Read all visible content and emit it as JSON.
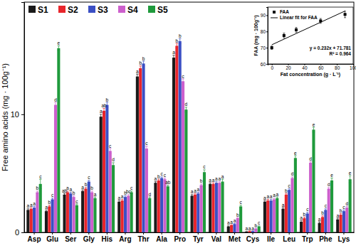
{
  "chart_data": [
    {
      "type": "bar",
      "y_label": "Free amino acids (mg · 100g⁻¹)",
      "categories": [
        "Asp",
        "Glu",
        "Ser",
        "Gly",
        "His",
        "Arg",
        "Thr",
        "Ala",
        "Pro",
        "Tyr",
        "Val",
        "Met",
        "Cys",
        "Ile",
        "Leu",
        "Trp",
        "Phe",
        "Lys"
      ],
      "ylim": [
        0,
        19.5
      ],
      "yticks": [
        0,
        10
      ],
      "legend": "top-left",
      "series": [
        {
          "name": "S1",
          "color": "#1a1a1a",
          "values": [
            1.9,
            1.8,
            3.2,
            3.5,
            9.8,
            2.6,
            13.2,
            4.2,
            14.8,
            3.1,
            4.1,
            0.5,
            0.05,
            2.6,
            2.0,
            0.9,
            0.8,
            1.1
          ],
          "errors": [
            0.1,
            0.1,
            0.1,
            0.1,
            0.2,
            0.1,
            0.2,
            0.1,
            0.2,
            0.1,
            0.1,
            0.05,
            0.02,
            0.1,
            0.1,
            0.1,
            0.1,
            0.1
          ],
          "letters": [
            "a",
            "a",
            "ab",
            "a",
            "a",
            "a",
            "a",
            "a",
            "a",
            "a",
            "a",
            "a",
            "a",
            "a",
            "a",
            "a",
            "a",
            "a"
          ]
        },
        {
          "name": "S2",
          "color": "#e8252b",
          "values": [
            2.0,
            2.2,
            3.4,
            3.7,
            10.3,
            2.7,
            13.9,
            4.4,
            15.8,
            3.2,
            4.1,
            0.6,
            0.1,
            2.7,
            3.2,
            1.2,
            1.3,
            1.5
          ],
          "errors": [
            0.1,
            0.1,
            0.1,
            0.1,
            0.2,
            0.1,
            0.2,
            0.1,
            0.2,
            0.1,
            0.1,
            0.05,
            0.02,
            0.1,
            0.1,
            0.1,
            0.1,
            0.1
          ],
          "letters": [
            "a",
            "b",
            "a",
            "b",
            "ab",
            "a",
            "b",
            "b",
            "b",
            "a",
            "a",
            "a",
            "a",
            "a",
            "b",
            "b",
            "b",
            "b"
          ]
        },
        {
          "name": "S3",
          "color": "#3b4fc4",
          "values": [
            2.1,
            2.8,
            3.3,
            4.3,
            10.8,
            3.0,
            14.3,
            4.6,
            16.2,
            3.3,
            4.2,
            0.7,
            0.1,
            2.7,
            3.6,
            1.6,
            1.9,
            1.8
          ],
          "errors": [
            0.1,
            0.1,
            0.1,
            0.1,
            0.2,
            0.1,
            0.2,
            0.1,
            0.2,
            0.1,
            0.1,
            0.05,
            0.02,
            0.1,
            0.1,
            0.1,
            0.1,
            0.1
          ],
          "letters": [
            "a",
            "c",
            "a",
            "c",
            "b",
            "b",
            "b",
            "c",
            "b",
            "a",
            "a",
            "a",
            "a",
            "a",
            "c",
            "c",
            "c",
            "c"
          ]
        },
        {
          "name": "S4",
          "color": "#cc5fcc",
          "values": [
            3.4,
            10.8,
            3.0,
            3.4,
            6.9,
            3.1,
            7.1,
            4.5,
            12.8,
            4.0,
            4.2,
            1.2,
            0.3,
            2.8,
            4.6,
            5.9,
            3.7,
            2.1
          ],
          "errors": [
            0.1,
            0.2,
            0.1,
            0.1,
            0.2,
            0.1,
            0.2,
            0.1,
            0.2,
            0.1,
            0.1,
            0.05,
            0.03,
            0.1,
            0.1,
            0.1,
            0.1,
            0.1
          ],
          "letters": [
            "b",
            "d",
            "b",
            "b",
            "c",
            "bc",
            "c",
            "c",
            "c",
            "b",
            "a",
            "b",
            "b",
            "a",
            "d",
            "d",
            "d",
            "d"
          ]
        },
        {
          "name": "S5",
          "color": "#1f9a3c",
          "values": [
            4.1,
            15.6,
            2.3,
            2.9,
            5.7,
            3.4,
            2.9,
            3.9,
            10.4,
            5.1,
            4.3,
            2.2,
            0.5,
            2.9,
            6.3,
            8.7,
            4.4,
            4.5
          ],
          "errors": [
            0.4,
            0.2,
            0.1,
            0.1,
            0.2,
            0.1,
            0.1,
            0.1,
            0.2,
            0.2,
            0.2,
            0.1,
            0.05,
            0.1,
            0.2,
            0.2,
            0.2,
            0.3
          ],
          "letters": [
            "c",
            "e",
            "c",
            "a",
            "d",
            "c",
            "d",
            "ab",
            "d",
            "c",
            "a",
            "c",
            "c",
            "a",
            "e",
            "e",
            "e",
            "e"
          ]
        }
      ]
    },
    {
      "type": "scatter",
      "x_label": "Fat concentration (g · L⁻¹)",
      "y_label": "FAA (mg · 100g⁻¹)",
      "xlim": [
        -5,
        100
      ],
      "xticks": [
        0,
        20,
        40,
        60,
        80,
        100
      ],
      "ylim": [
        60,
        95
      ],
      "yticks": [
        60,
        70,
        80,
        90
      ],
      "legend": "top-left",
      "annotations": [
        "y = 0.232x + 71.781",
        "R² = 0.964"
      ],
      "series": [
        {
          "name": "FAA",
          "type": "scatter",
          "marker": "square",
          "color": "#000000",
          "x": [
            0,
            15,
            30,
            60,
            90
          ],
          "values": [
            70.0,
            77.5,
            81.0,
            86.5,
            90.5
          ],
          "errors": [
            1.0,
            1.5,
            1.5,
            1.5,
            2.0
          ]
        },
        {
          "name": "Linear fit for FAA",
          "type": "line",
          "line_style": "solid",
          "color": "#000000",
          "x": [
            0,
            90
          ],
          "values": [
            71.8,
            92.6
          ]
        }
      ]
    }
  ]
}
